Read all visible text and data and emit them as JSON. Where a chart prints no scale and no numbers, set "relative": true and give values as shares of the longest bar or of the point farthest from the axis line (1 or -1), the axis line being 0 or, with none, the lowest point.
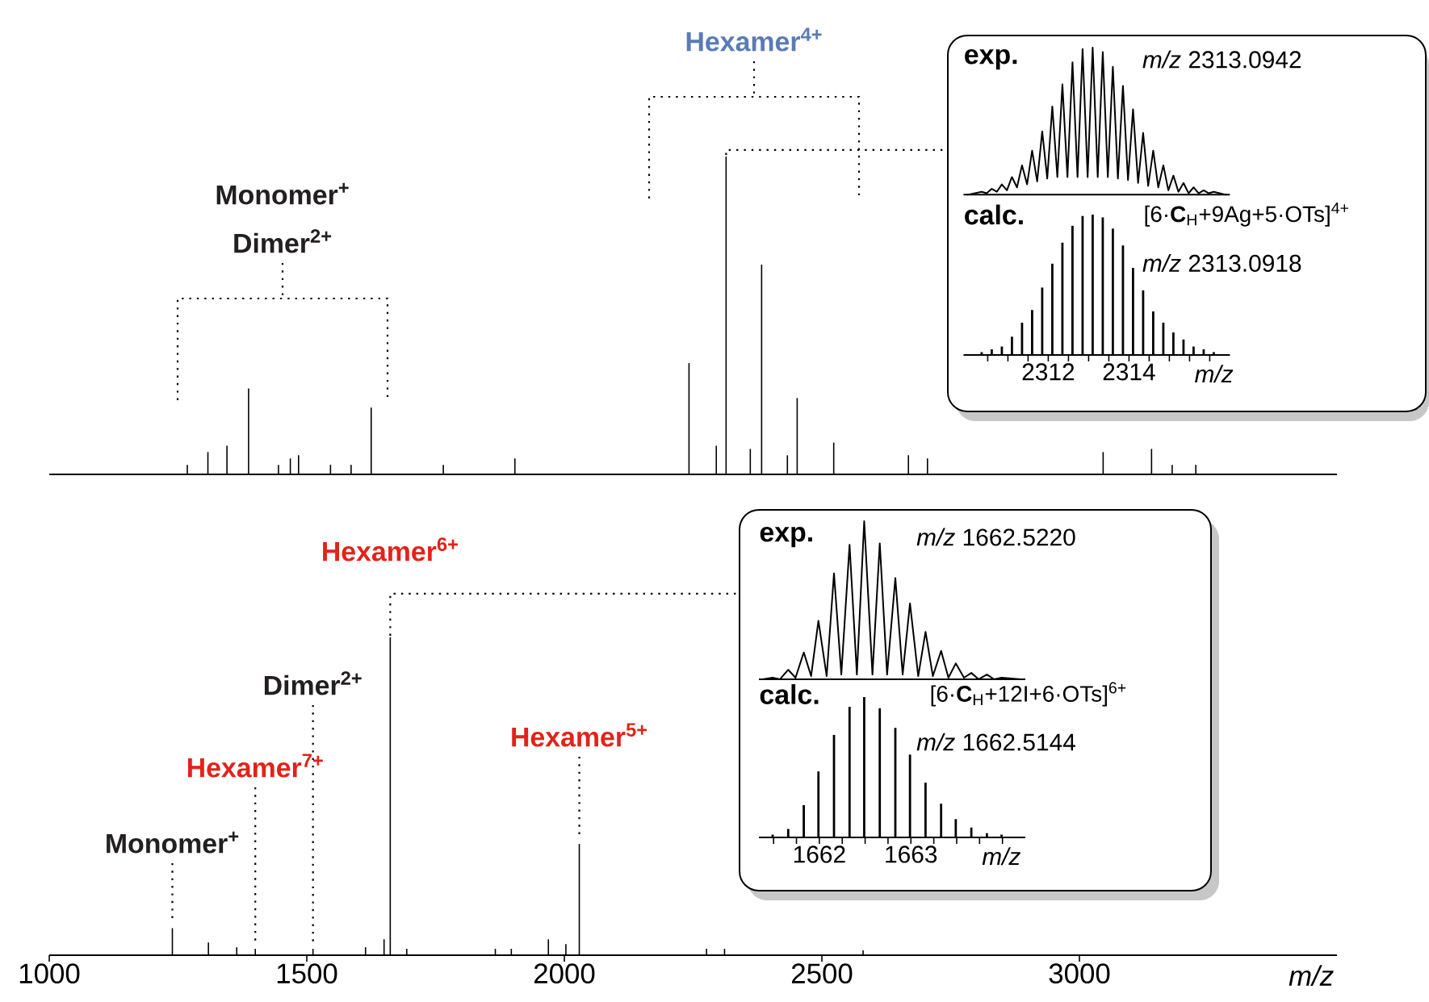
{
  "chart_data": [
    {
      "type": "bar",
      "relative": true,
      "xlim": [
        1000,
        3500
      ],
      "tick_labels": false,
      "color": "#000000",
      "x": [
        1268,
        1308,
        1345,
        1387,
        1445,
        1468,
        1484,
        1546,
        1586,
        1625,
        1765,
        1904,
        2242,
        2295,
        2314,
        2361,
        2383,
        2433,
        2452,
        2523,
        2668,
        2705,
        3046,
        3140,
        3180,
        3226
      ],
      "values": [
        0.03,
        0.07,
        0.09,
        0.27,
        0.03,
        0.05,
        0.06,
        0.03,
        0.03,
        0.21,
        0.03,
        0.05,
        0.35,
        0.09,
        1,
        0.08,
        0.66,
        0.06,
        0.24,
        0.1,
        0.06,
        0.05,
        0.07,
        0.08,
        0.03,
        0.03
      ],
      "annotations": [
        "Monomer$^{+}$",
        "Dimer$^{2+}$",
        "Hexamer$^{4+}$"
      ]
    },
    {
      "type": "line",
      "relative": true,
      "xlim": [
        2309.9,
        2316.5
      ],
      "tick_labels": false,
      "color": "#000000",
      "title": "exp.",
      "annotations": [
        "*m/z* 2313.0942"
      ],
      "x": [
        2310.0,
        2310.35,
        2310.475,
        2310.6,
        2310.725,
        2310.85,
        2310.975,
        2311.1,
        2311.225,
        2311.35,
        2311.475,
        2311.6,
        2311.725,
        2311.85,
        2311.975,
        2312.1,
        2312.225,
        2312.35,
        2312.475,
        2312.6,
        2312.725,
        2312.85,
        2312.975,
        2313.1,
        2313.225,
        2313.35,
        2313.475,
        2313.6,
        2313.725,
        2313.85,
        2313.975,
        2314.1,
        2314.225,
        2314.35,
        2314.475,
        2314.6,
        2314.725,
        2314.85,
        2314.975,
        2315.1,
        2315.225,
        2315.35,
        2315.475,
        2315.6,
        2315.725,
        2315.85,
        2315.975,
        2316.1,
        2316.4
      ],
      "values": [
        0,
        0.02,
        0.01,
        0.04,
        0.02,
        0.07,
        0.03,
        0.12,
        0.05,
        0.2,
        0.07,
        0.3,
        0.09,
        0.43,
        0.11,
        0.6,
        0.12,
        0.75,
        0.12,
        0.9,
        0.12,
        0.99,
        0.12,
        1,
        0.12,
        0.97,
        0.12,
        0.87,
        0.11,
        0.74,
        0.1,
        0.58,
        0.08,
        0.42,
        0.06,
        0.3,
        0.05,
        0.2,
        0.03,
        0.13,
        0.02,
        0.08,
        0.01,
        0.05,
        0.01,
        0.03,
        0.01,
        0.02,
        0
      ]
    },
    {
      "type": "bar",
      "relative": true,
      "xlim": [
        2309.9,
        2316.5
      ],
      "color": "#000000",
      "title": "calc.",
      "xlabel": "m/z",
      "annotations": [
        "[6·**C**$_{H}$+9Ag+5·OTs]$^{4+}$",
        "*m/z* 2313.0918"
      ],
      "xticks": [
        {
          "value": 2310.5,
          "label": null
        },
        {
          "value": 2311.0,
          "label": null
        },
        {
          "value": 2311.5,
          "label": null
        },
        2312,
        {
          "value": 2312.5,
          "label": null
        },
        {
          "value": 2313.0,
          "label": null
        },
        {
          "value": 2313.5,
          "label": null
        },
        2314,
        {
          "value": 2314.5,
          "label": null
        },
        {
          "value": 2315.0,
          "label": null
        },
        {
          "value": 2315.5,
          "label": null
        },
        {
          "value": 2316.0,
          "label": null
        }
      ],
      "x": [
        2310.35,
        2310.6,
        2310.85,
        2311.1,
        2311.35,
        2311.6,
        2311.85,
        2312.1,
        2312.35,
        2312.6,
        2312.85,
        2313.1,
        2313.35,
        2313.6,
        2313.85,
        2314.1,
        2314.35,
        2314.6,
        2314.85,
        2315.1,
        2315.35,
        2315.6,
        2315.85,
        2316.1
      ],
      "values": [
        0.02,
        0.04,
        0.06,
        0.13,
        0.23,
        0.32,
        0.48,
        0.65,
        0.8,
        0.92,
        0.99,
        1,
        0.98,
        0.9,
        0.78,
        0.62,
        0.46,
        0.31,
        0.23,
        0.16,
        0.11,
        0.06,
        0.04,
        0.02
      ]
    },
    {
      "type": "bar",
      "relative": true,
      "xlim": [
        1000,
        3500
      ],
      "xticks": [
        1000,
        1500,
        2000,
        2500,
        3000
      ],
      "xlabel": "m/z",
      "color": "#000000",
      "x": [
        1239,
        1309,
        1364,
        1400,
        1512,
        1614,
        1650,
        1662,
        1694,
        1866,
        1897,
        1969,
        2003,
        2029,
        2276,
        2311,
        2580
      ],
      "values": [
        0.085,
        0.04,
        0.025,
        0.02,
        0.02,
        0.025,
        0.05,
        1,
        0.02,
        0.02,
        0.02,
        0.05,
        0.035,
        0.35,
        0.02,
        0.02,
        0.015
      ],
      "annotations": [
        {
          "text": "Monomer$^{+}$",
          "x": 1239,
          "y": 0.085
        },
        {
          "text": "Hexamer$^{7+}$",
          "x": 1400,
          "y": 0.02
        },
        {
          "text": "Dimer$^{2+}$",
          "x": 1512,
          "y": 0.02
        },
        {
          "text": "Hexamer$^{6+}$",
          "x": 1662,
          "y": 1
        },
        {
          "text": "Hexamer$^{5+}$",
          "x": 2029,
          "y": 0.35
        }
      ]
    },
    {
      "type": "line",
      "relative": true,
      "xlim": [
        1661.34,
        1664.25
      ],
      "tick_labels": false,
      "color": "#000000",
      "title": "exp.",
      "annotations": [
        "*m/z* 1662.5220"
      ],
      "x": [
        1661.38,
        1661.49,
        1661.57,
        1661.66,
        1661.74,
        1661.83,
        1661.91,
        1661.99,
        1662.08,
        1662.16,
        1662.24,
        1662.33,
        1662.41,
        1662.49,
        1662.58,
        1662.66,
        1662.74,
        1662.83,
        1662.91,
        1662.99,
        1663.08,
        1663.16,
        1663.24,
        1663.33,
        1663.41,
        1663.49,
        1663.58,
        1663.66,
        1663.74,
        1663.83,
        1663.91,
        1663.99,
        1664.2
      ],
      "values": [
        0,
        0.01,
        0,
        0.06,
        0.01,
        0.17,
        0.02,
        0.37,
        0.02,
        0.67,
        0.03,
        0.85,
        0.03,
        1,
        0.03,
        0.86,
        0.03,
        0.64,
        0.03,
        0.48,
        0.02,
        0.3,
        0.02,
        0.18,
        0.01,
        0.1,
        0.01,
        0.04,
        0,
        0.03,
        0,
        0.01,
        0
      ]
    },
    {
      "type": "bar",
      "relative": true,
      "xlim": [
        1661.34,
        1664.25
      ],
      "color": "#000000",
      "title": "calc.",
      "xlabel": "m/z",
      "annotations": [
        "[6·**C**$_{H}$+12I+6·OTs]$^{6+}$",
        "*m/z* 1662.5144"
      ],
      "xticks": [
        {
          "value": 1661.5,
          "label": null
        },
        {
          "value": 1661.75,
          "label": null
        },
        1662,
        {
          "value": 1662.25,
          "label": null
        },
        {
          "value": 1662.5,
          "label": null
        },
        {
          "value": 1662.75,
          "label": null
        },
        1663,
        {
          "value": 1663.25,
          "label": null
        },
        {
          "value": 1663.5,
          "label": null
        },
        {
          "value": 1663.75,
          "label": null
        },
        {
          "value": 1664.0,
          "label": null
        }
      ],
      "x": [
        1661.49,
        1661.66,
        1661.83,
        1661.99,
        1662.16,
        1662.33,
        1662.49,
        1662.66,
        1662.83,
        1662.99,
        1663.16,
        1663.33,
        1663.49,
        1663.66,
        1663.83,
        1663.99
      ],
      "values": [
        0.02,
        0.06,
        0.23,
        0.47,
        0.73,
        0.93,
        1,
        0.92,
        0.78,
        0.59,
        0.39,
        0.24,
        0.13,
        0.07,
        0.03,
        0.02
      ]
    }
  ]
}
